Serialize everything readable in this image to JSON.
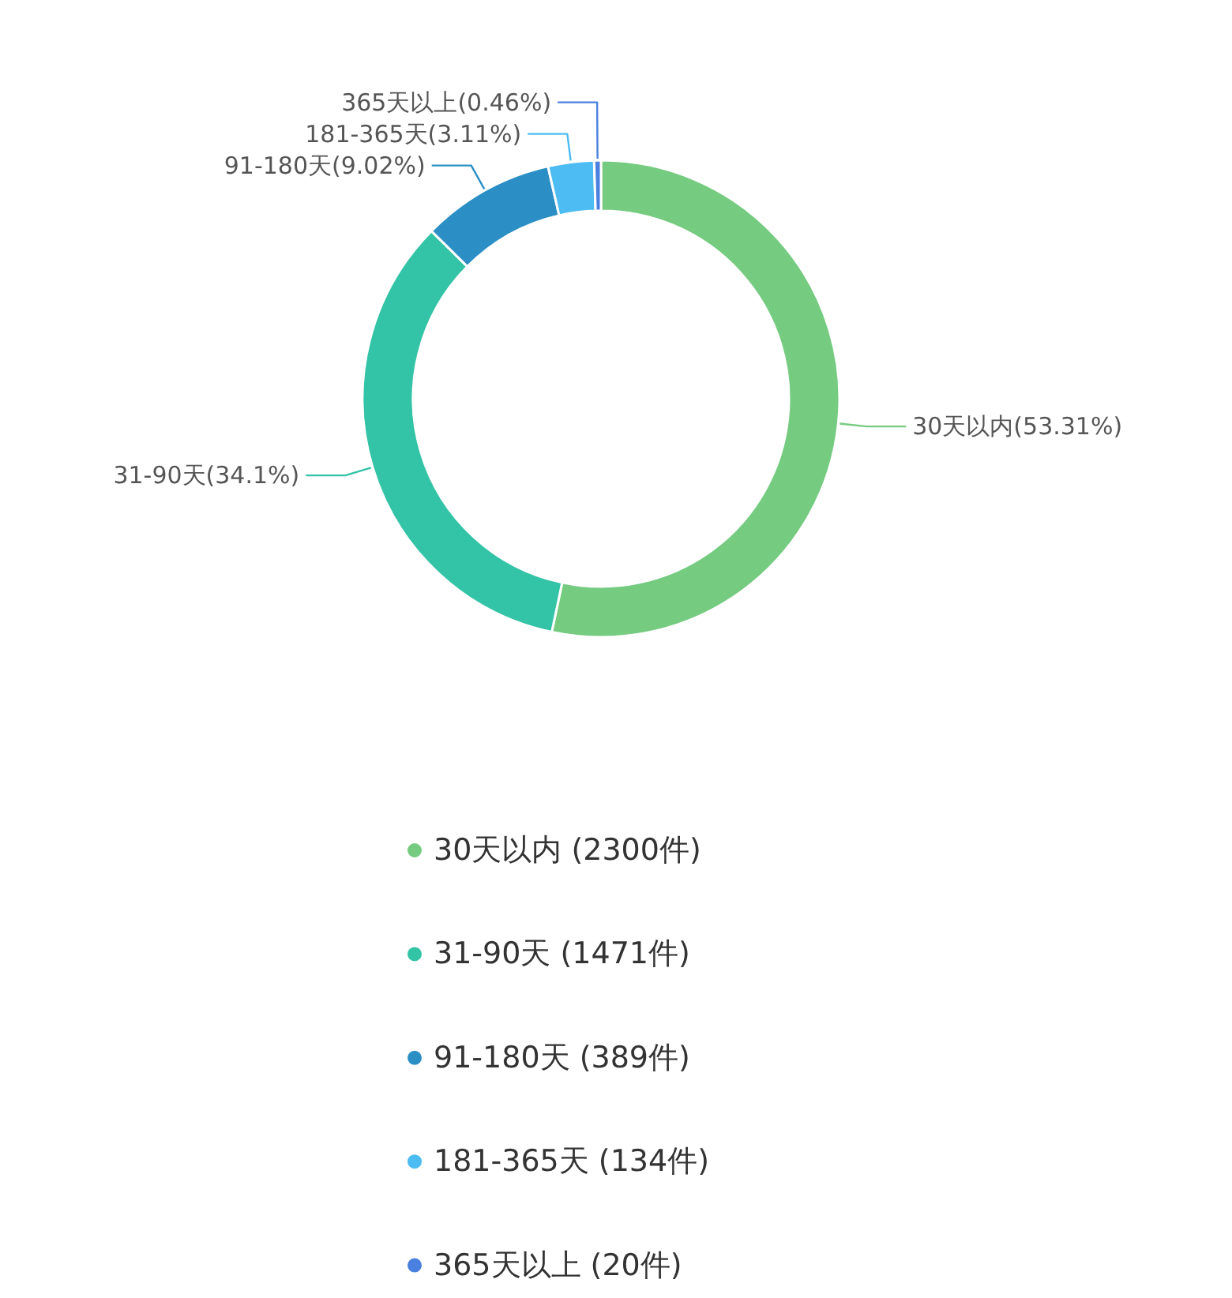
{
  "chart_data": {
    "type": "donut",
    "categories": [
      "30天以内  (2300件)",
      "31-90天  (1471件)",
      "91-180天  (389件)",
      "181-365天  (134件)",
      "365天以上  (20件)"
    ],
    "values": [
      53.31,
      34.1,
      9.02,
      3.11,
      0.46
    ],
    "colors": [
      "#75cb80",
      "#33c3a6",
      "#2b8fc6",
      "#4cbcf2",
      "#4a80e0"
    ],
    "value_labels": [
      "30天以内(53.31%)",
      "31-90天(34.1%)",
      "91-180天(9.02%)",
      "181-365天(3.11%)",
      "365天以上(0.46%)"
    ],
    "legend": "bottom"
  }
}
